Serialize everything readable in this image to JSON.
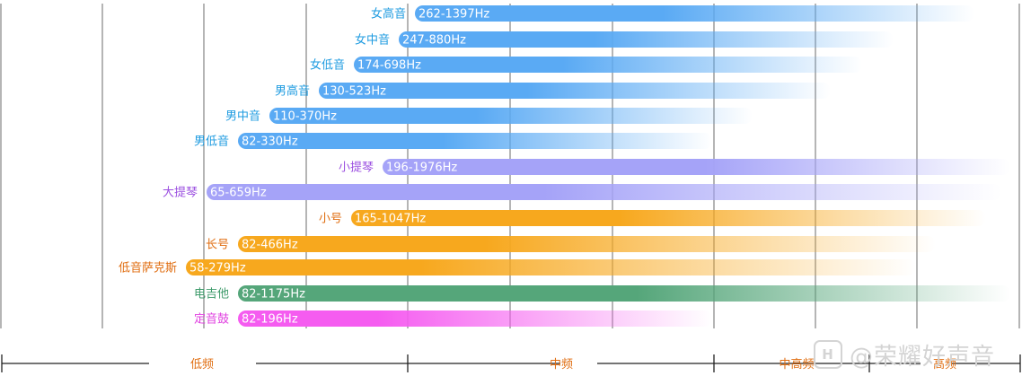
{
  "chart_data": {
    "type": "range-bar",
    "title": "",
    "xlabel": "",
    "ylabel": "",
    "x_scale": "linear",
    "grid": true,
    "series": [
      {
        "name": "女高音",
        "range_label": "262-1397Hz",
        "low": 262,
        "high": 1397,
        "color": "#5aaaf4",
        "label_color": "#1e9be0"
      },
      {
        "name": "女中音",
        "range_label": "247-880Hz",
        "low": 247,
        "high": 880,
        "color": "#5aaaf4",
        "label_color": "#1e9be0"
      },
      {
        "name": "女低音",
        "range_label": "174-698Hz",
        "low": 174,
        "high": 698,
        "color": "#5aaaf4",
        "label_color": "#1e9be0"
      },
      {
        "name": "男高音",
        "range_label": "130-523Hz",
        "low": 130,
        "high": 523,
        "color": "#5aaaf4",
        "label_color": "#1e9be0"
      },
      {
        "name": "男中音",
        "range_label": "110-370Hz",
        "low": 110,
        "high": 370,
        "color": "#5aaaf4",
        "label_color": "#1e9be0"
      },
      {
        "name": "男低音",
        "range_label": "82-330Hz",
        "low": 82,
        "high": 330,
        "color": "#5aaaf4",
        "label_color": "#1e9be0"
      },
      {
        "name": "小提琴",
        "range_label": "196-1976Hz",
        "low": 196,
        "high": 1976,
        "color": "#a5a3f8",
        "label_color": "#9b4fe0"
      },
      {
        "name": "大提琴",
        "range_label": "65-659Hz",
        "low": 65,
        "high": 659,
        "color": "#a5a3f8",
        "label_color": "#9b4fe0"
      },
      {
        "name": "小号",
        "range_label": "165-1047Hz",
        "low": 165,
        "high": 1047,
        "color": "#f7a81e",
        "label_color": "#e06d10"
      },
      {
        "name": "长号",
        "range_label": "82-466Hz",
        "low": 82,
        "high": 466,
        "color": "#f7a81e",
        "label_color": "#e06d10"
      },
      {
        "name": "低音萨克斯",
        "range_label": "58-279Hz",
        "low": 58,
        "high": 279,
        "color": "#f7a81e",
        "label_color": "#e06d10"
      },
      {
        "name": "电吉他",
        "range_label": "82-1175Hz",
        "low": 82,
        "high": 1175,
        "color": "#55a67a",
        "label_color": "#3d9a6a"
      },
      {
        "name": "定音鼓",
        "range_label": "82-196Hz",
        "low": 82,
        "high": 196,
        "color": "#f55cf0",
        "label_color": "#e040e0"
      }
    ],
    "bands": [
      {
        "label": "低频"
      },
      {
        "label": "中频"
      },
      {
        "label": "中高频"
      },
      {
        "label": "高频"
      }
    ]
  },
  "watermark": {
    "text": "@荣耀好声音"
  }
}
